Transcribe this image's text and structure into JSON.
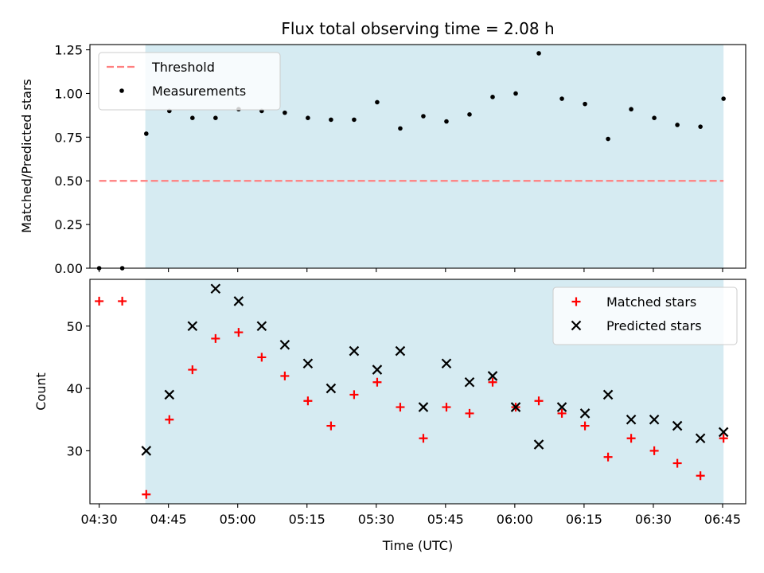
{
  "chart_data": {
    "title": "Flux total observing time = 2.08 h",
    "xlabel": "Time (UTC)",
    "x_ticks": [
      "04:30",
      "04:45",
      "05:00",
      "05:15",
      "05:30",
      "05:45",
      "06:00",
      "06:15",
      "06:30",
      "06:45"
    ],
    "x_tick_minutes": [
      270,
      285,
      300,
      315,
      330,
      345,
      360,
      375,
      390,
      405
    ],
    "xlim": [
      268,
      410
    ],
    "highlight_span": {
      "start": 280,
      "end": 405.2,
      "color": "#add8e6"
    },
    "times": [
      270,
      275,
      280.2,
      285.2,
      290.2,
      295.2,
      300.2,
      305.2,
      310.2,
      315.2,
      320.2,
      325.2,
      330.2,
      335.2,
      340.2,
      345.2,
      350.2,
      355.2,
      360.2,
      365.2,
      370.2,
      375.2,
      380.2,
      385.2,
      390.2,
      395.2,
      400.2,
      405.2
    ],
    "panels": [
      {
        "type": "scatter",
        "ylabel": "Matched/Predicted stars",
        "ylim": [
          0,
          1.28
        ],
        "y_ticks": [
          "0.00",
          "0.25",
          "0.50",
          "0.75",
          "1.00",
          "1.25"
        ],
        "y_tick_values": [
          0,
          0.25,
          0.5,
          0.75,
          1.0,
          1.25
        ],
        "legend_position": "top-left",
        "threshold": {
          "name": "Threshold",
          "value": 0.5,
          "x_range": [
            270,
            405.2
          ],
          "color": "#ff7f7f"
        },
        "series": [
          {
            "name": "Measurements",
            "color": "#000000",
            "marker": "dot",
            "values": [
              0,
              0,
              0.77,
              0.9,
              0.86,
              0.86,
              0.91,
              0.9,
              0.89,
              0.86,
              0.85,
              0.85,
              0.95,
              0.8,
              0.87,
              0.84,
              0.88,
              0.98,
              1.0,
              1.23,
              0.97,
              0.94,
              0.74,
              0.91,
              0.86,
              0.82,
              0.81,
              0.97
            ]
          }
        ]
      },
      {
        "type": "scatter",
        "ylabel": "Count",
        "ylim": [
          21.5,
          57.5
        ],
        "y_ticks": [
          "30",
          "40",
          "50"
        ],
        "y_tick_values": [
          30,
          40,
          50
        ],
        "legend_position": "top-right",
        "series": [
          {
            "name": "Matched stars",
            "color": "#ff0000",
            "marker": "plus",
            "values": [
              54,
              54,
              23,
              35,
              43,
              48,
              49,
              45,
              42,
              38,
              34,
              39,
              41,
              37,
              32,
              37,
              36,
              41,
              37,
              38,
              36,
              34,
              29,
              32,
              30,
              28,
              26,
              32
            ]
          },
          {
            "name": "Predicted stars",
            "color": "#000000",
            "marker": "x",
            "values": [
              null,
              null,
              30,
              39,
              50,
              56,
              54,
              50,
              47,
              44,
              40,
              46,
              43,
              46,
              37,
              44,
              41,
              42,
              37,
              31,
              37,
              36,
              39,
              35,
              35,
              34,
              32,
              33
            ]
          }
        ]
      }
    ]
  }
}
